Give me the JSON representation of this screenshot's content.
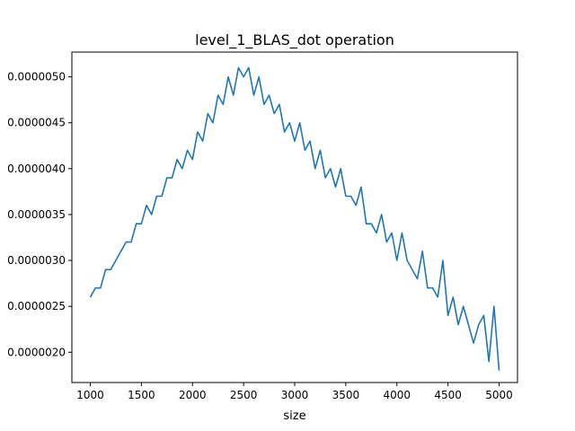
{
  "chart_data": {
    "type": "line",
    "title": "level_1_BLAS_dot operation",
    "xlabel": "size",
    "ylabel": "",
    "xlim": [
      820,
      5180
    ],
    "ylim": [
      1.67e-06,
      5.27e-06
    ],
    "grid": false,
    "line_color": "#1f77b4",
    "x_ticks": [
      1000,
      1500,
      2000,
      2500,
      3000,
      3500,
      4000,
      4500,
      5000
    ],
    "x_tick_labels": [
      "1000",
      "1500",
      "2000",
      "2500",
      "3000",
      "3500",
      "4000",
      "4500",
      "5000"
    ],
    "y_ticks": [
      2e-06,
      2.5e-06,
      3e-06,
      3.5e-06,
      4e-06,
      4.5e-06,
      5e-06
    ],
    "y_tick_labels": [
      "0.0000020",
      "0.0000025",
      "0.0000030",
      "0.0000035",
      "0.0000040",
      "0.0000045",
      "0.0000050"
    ],
    "series": [
      {
        "x": [
          1000,
          1050,
          1100,
          1150,
          1200,
          1250,
          1300,
          1350,
          1400,
          1450,
          1500,
          1550,
          1600,
          1650,
          1700,
          1750,
          1800,
          1850,
          1900,
          1950,
          2000,
          2050,
          2100,
          2150,
          2200,
          2250,
          2300,
          2350,
          2400,
          2450,
          2500,
          2550,
          2600,
          2650,
          2700,
          2750,
          2800,
          2850,
          2900,
          2950,
          3000,
          3050,
          3100,
          3150,
          3200,
          3250,
          3300,
          3350,
          3400,
          3450,
          3500,
          3550,
          3600,
          3650,
          3700,
          3750,
          3800,
          3850,
          3900,
          3950,
          4000,
          4050,
          4100,
          4150,
          4200,
          4250,
          4300,
          4350,
          4400,
          4450,
          4500,
          4550,
          4600,
          4650,
          4700,
          4750,
          4800,
          4850,
          4900,
          4950,
          5000
        ],
        "y": [
          2.6e-06,
          2.7e-06,
          2.7e-06,
          2.9e-06,
          2.9e-06,
          3e-06,
          3.1e-06,
          3.2e-06,
          3.2e-06,
          3.4e-06,
          3.4e-06,
          3.6e-06,
          3.5e-06,
          3.7e-06,
          3.7e-06,
          3.9e-06,
          3.9e-06,
          4.1e-06,
          4e-06,
          4.2e-06,
          4.1e-06,
          4.4e-06,
          4.3e-06,
          4.6e-06,
          4.5e-06,
          4.8e-06,
          4.7e-06,
          5e-06,
          4.8e-06,
          5.1e-06,
          5e-06,
          5.1e-06,
          4.8e-06,
          5e-06,
          4.7e-06,
          4.8e-06,
          4.6e-06,
          4.7e-06,
          4.4e-06,
          4.5e-06,
          4.3e-06,
          4.5e-06,
          4.2e-06,
          4.3e-06,
          4e-06,
          4.2e-06,
          3.9e-06,
          4e-06,
          3.8e-06,
          4e-06,
          3.7e-06,
          3.7e-06,
          3.6e-06,
          3.8e-06,
          3.4e-06,
          3.4e-06,
          3.3e-06,
          3.5e-06,
          3.2e-06,
          3.3e-06,
          3e-06,
          3.3e-06,
          3e-06,
          2.9e-06,
          2.8e-06,
          3.1e-06,
          2.7e-06,
          2.7e-06,
          2.6e-06,
          3e-06,
          2.4e-06,
          2.6e-06,
          2.3e-06,
          2.5e-06,
          2.3e-06,
          2.1e-06,
          2.3e-06,
          2.4e-06,
          1.9e-06,
          2.5e-06,
          1.8e-06
        ]
      }
    ]
  }
}
